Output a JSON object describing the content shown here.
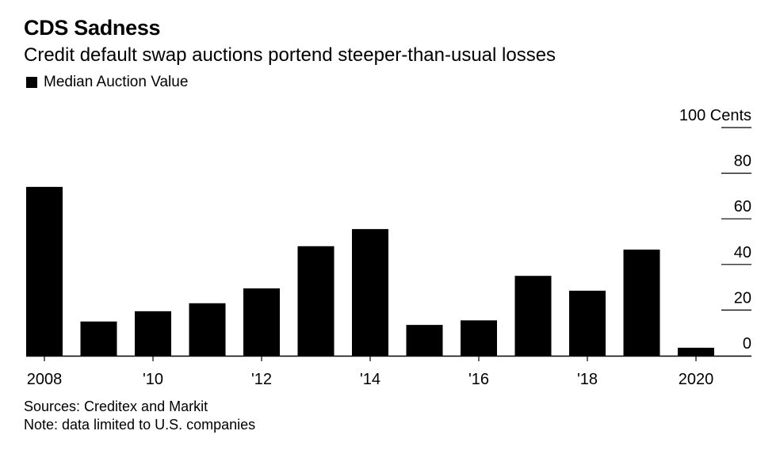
{
  "title": "CDS Sadness",
  "subtitle": "Credit default swap auctions portend steeper-than-usual losses",
  "legend": {
    "label": "Median Auction Value",
    "color": "#000000"
  },
  "footer": {
    "source": "Sources: Creditex and Markit",
    "note": "Note: data limited to U.S. companies"
  },
  "chart_data": {
    "type": "bar",
    "title": "CDS Sadness",
    "subtitle": "Credit default swap auctions portend steeper-than-usual losses",
    "categories": [
      "2008",
      "2009",
      "2010",
      "2011",
      "2012",
      "2013",
      "2014",
      "2015",
      "2016",
      "2017",
      "2018",
      "2019",
      "2020"
    ],
    "series": [
      {
        "name": "Median Auction Value",
        "color": "#000000",
        "values": [
          74,
          15,
          19.5,
          23,
          29.5,
          48,
          55.5,
          13.5,
          15.5,
          35,
          28.5,
          46.5,
          3.5
        ]
      }
    ],
    "xticks": [
      {
        "category": "2008",
        "label": "2008"
      },
      {
        "category": "2010",
        "label": "'10"
      },
      {
        "category": "2012",
        "label": "'12"
      },
      {
        "category": "2014",
        "label": "'14"
      },
      {
        "category": "2016",
        "label": "'16"
      },
      {
        "category": "2018",
        "label": "'18"
      },
      {
        "category": "2020",
        "label": "2020"
      }
    ],
    "yticks": [
      {
        "value": 100,
        "label": "100 Cents"
      },
      {
        "value": 80,
        "label": "80"
      },
      {
        "value": 60,
        "label": "60"
      },
      {
        "value": 40,
        "label": "40"
      },
      {
        "value": 20,
        "label": "20"
      },
      {
        "value": 0,
        "label": "0"
      }
    ],
    "ylim": [
      0,
      100
    ],
    "yaxis_position": "right",
    "grid": false,
    "legend_position": "top-left"
  }
}
